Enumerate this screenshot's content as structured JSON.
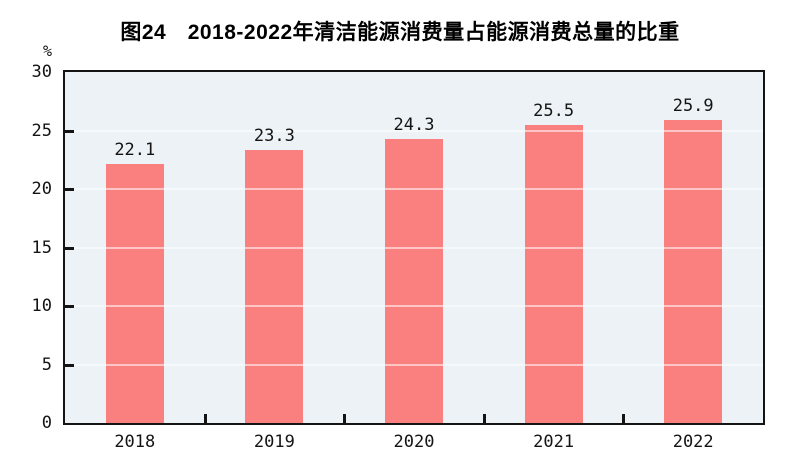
{
  "title": "图24　2018-2022年清洁能源消费量占能源消费总量的比重",
  "unit_label": "%",
  "colors": {
    "bar": "#FA7F7F",
    "plot_background": "#ECF2F5",
    "axis": "#141414",
    "gridline": "rgba(255,255,255,0.55)",
    "text": "#141414"
  },
  "chart_data": {
    "type": "bar",
    "title": "图24　2018-2022年清洁能源消费量占能源消费总量的比重",
    "categories": [
      "2018",
      "2019",
      "2020",
      "2021",
      "2022"
    ],
    "values": [
      22.1,
      23.3,
      24.3,
      25.5,
      25.9
    ],
    "value_labels": [
      "22.1",
      "23.3",
      "24.3",
      "25.5",
      "25.9"
    ],
    "xlabel": "",
    "ylabel": "%",
    "ylim": [
      0,
      30
    ],
    "yticks": [
      0,
      5,
      10,
      15,
      20,
      25,
      30
    ],
    "grid": true,
    "legend": false
  }
}
